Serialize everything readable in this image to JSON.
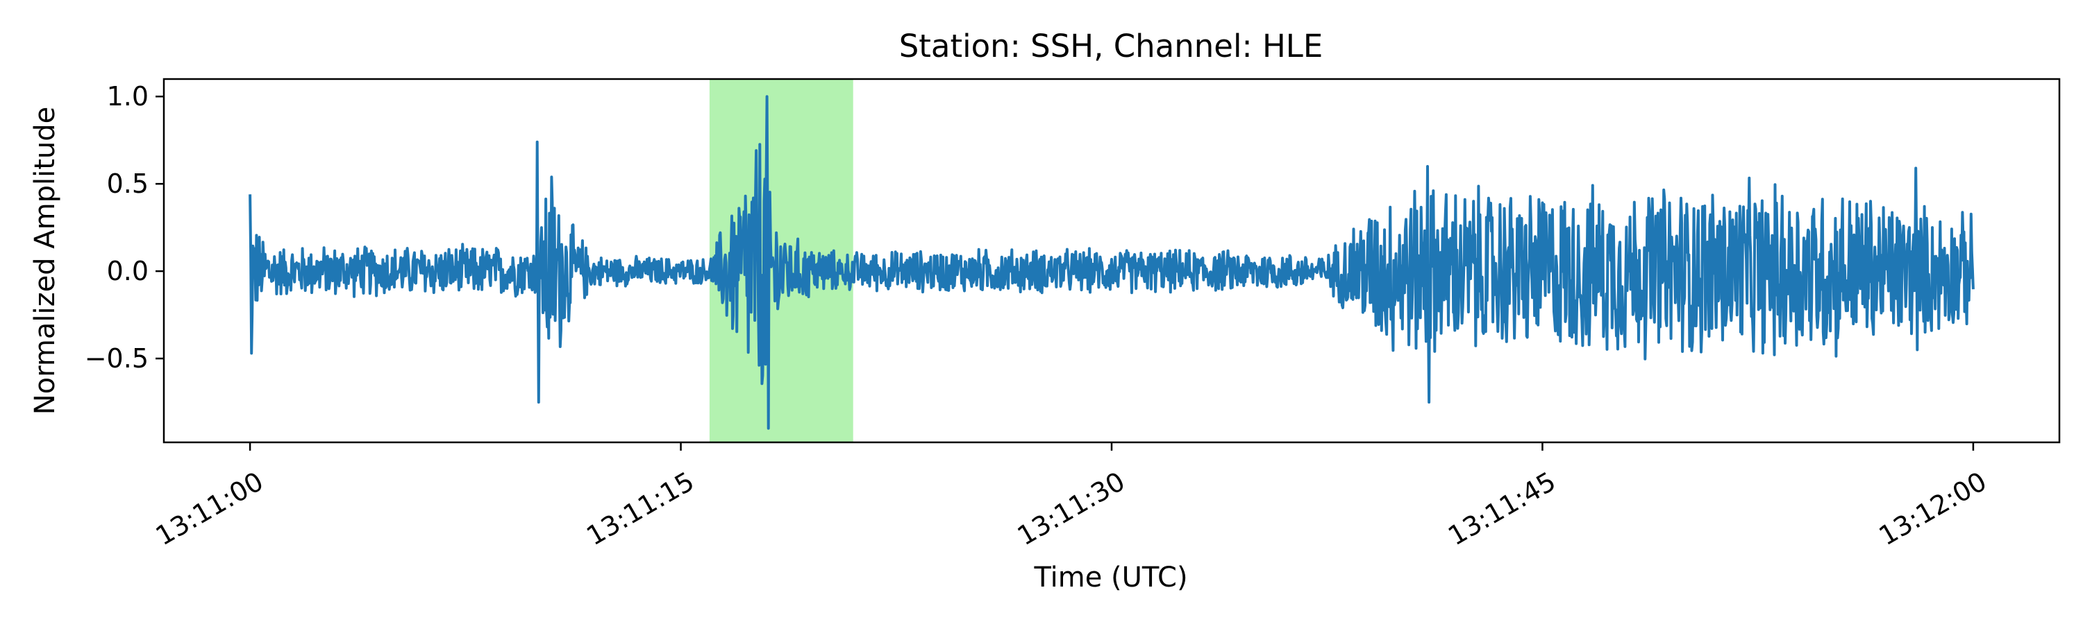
{
  "chart_data": {
    "type": "line",
    "title": "Station: SSH, Channel: HLE",
    "xlabel": "Time (UTC)",
    "ylabel": "Normalized Amplitude",
    "x_start": "13:11:00",
    "x_end": "13:12:00",
    "xlim": [
      "13:10:57",
      "13:12:03"
    ],
    "ylim": [
      -0.98,
      1.1
    ],
    "x_ticks": [
      "13:11:00",
      "13:11:15",
      "13:11:30",
      "13:11:45",
      "13:12:00"
    ],
    "y_ticks": [
      {
        "value": 1.0,
        "label": "1.0"
      },
      {
        "value": 0.5,
        "label": "0.5"
      },
      {
        "value": 0.0,
        "label": "0.0"
      },
      {
        "value": -0.5,
        "label": "−0.5"
      }
    ],
    "grid": false,
    "highlight_window": {
      "start": "13:11:16",
      "end": "13:11:21",
      "color": "#b3f2b0"
    },
    "series_color": "#1f77b4",
    "envelope": {
      "description_times_s": [
        0,
        0.3,
        1,
        10,
        10.4,
        11.2,
        12,
        16,
        17.9,
        18.1,
        18.8,
        20.5,
        25,
        30,
        35,
        37.5,
        38.5,
        40,
        45,
        50,
        55,
        60
      ],
      "amplitude": [
        0.44,
        0.25,
        0.16,
        0.16,
        0.74,
        0.3,
        0.1,
        0.08,
        1.0,
        0.5,
        0.22,
        0.12,
        0.14,
        0.14,
        0.13,
        0.1,
        0.35,
        0.55,
        0.52,
        0.55,
        0.55,
        0.35
      ]
    },
    "bursts": [
      {
        "time": "13:11:00",
        "peak": 0.44,
        "trough": -0.47
      },
      {
        "time": "13:11:10",
        "peak": 0.74,
        "trough": -0.75
      },
      {
        "time": "13:11:18",
        "peak": 1.0,
        "trough": -0.9
      },
      {
        "time": "13:11:41",
        "peak": 0.6,
        "trough": -0.75
      },
      {
        "time": "13:11:58",
        "peak": 0.59,
        "trough": -0.45
      }
    ]
  }
}
